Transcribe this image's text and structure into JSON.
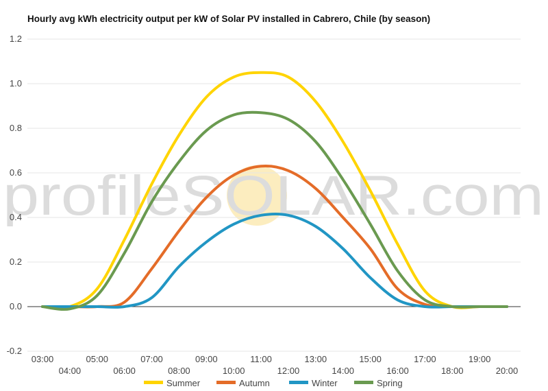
{
  "chart_data": {
    "type": "line",
    "title": "Hourly avg kWh electricity output per kW of Solar PV installed in Cabrero, Chile (by season)",
    "xlabel": "",
    "ylabel": "",
    "ylim": [
      -0.2,
      1.2
    ],
    "yticks": [
      "-0.2",
      "0.0",
      "0.2",
      "0.4",
      "0.6",
      "0.8",
      "1.0",
      "1.2"
    ],
    "xlim": [
      3,
      20
    ],
    "xticks_upper": [
      "03:00",
      "05:00",
      "07:00",
      "09:00",
      "11:00",
      "13:00",
      "15:00",
      "17:00",
      "19:00"
    ],
    "xticks_lower": [
      "04:00",
      "06:00",
      "08:00",
      "10:00",
      "12:00",
      "14:00",
      "16:00",
      "18:00",
      "20:00"
    ],
    "grid": true,
    "legend_position": "bottom",
    "watermark": "profileSOLAR.com",
    "x": [
      3,
      4,
      5,
      6,
      7,
      8,
      9,
      10,
      11,
      12,
      13,
      14,
      15,
      16,
      17,
      18,
      19,
      20
    ],
    "series": [
      {
        "name": "Summer",
        "color": "#FFD400",
        "values": [
          0.0,
          0.0,
          0.08,
          0.3,
          0.55,
          0.77,
          0.94,
          1.03,
          1.05,
          1.03,
          0.92,
          0.74,
          0.52,
          0.28,
          0.07,
          0.0,
          0.0,
          0.0
        ]
      },
      {
        "name": "Autumn",
        "color": "#E46C28",
        "values": [
          0.0,
          0.0,
          0.0,
          0.02,
          0.17,
          0.34,
          0.49,
          0.59,
          0.63,
          0.61,
          0.53,
          0.4,
          0.26,
          0.08,
          0.01,
          0.0,
          0.0,
          0.0
        ]
      },
      {
        "name": "Winter",
        "color": "#2196C4",
        "values": [
          0.0,
          0.0,
          0.0,
          0.0,
          0.04,
          0.18,
          0.29,
          0.37,
          0.41,
          0.41,
          0.36,
          0.26,
          0.13,
          0.03,
          0.0,
          0.0,
          0.0,
          0.0
        ]
      },
      {
        "name": "Spring",
        "color": "#6A9A50",
        "values": [
          0.0,
          -0.01,
          0.05,
          0.24,
          0.47,
          0.65,
          0.79,
          0.86,
          0.87,
          0.84,
          0.74,
          0.57,
          0.37,
          0.16,
          0.03,
          0.0,
          0.0,
          0.0
        ]
      }
    ]
  }
}
